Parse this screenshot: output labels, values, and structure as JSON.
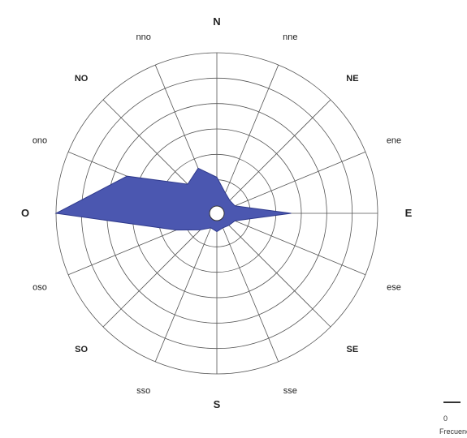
{
  "chart_data": {
    "type": "radar",
    "directions": [
      "N",
      "nne",
      "NE",
      "ene",
      "E",
      "ese",
      "SE",
      "sse",
      "S",
      "sso",
      "SO",
      "oso",
      "O",
      "ono",
      "NO",
      "nno"
    ],
    "rings": 6,
    "ring_max": 6,
    "series": [
      {
        "values": [
          1.1,
          0.55,
          0.4,
          0.45,
          2.6,
          0.45,
          0.35,
          0.3,
          0.4,
          0.3,
          0.6,
          1.4,
          6.0,
          3.5,
          1.3,
          1.6
        ]
      }
    ],
    "scale_labels": {
      "zero": "0",
      "caption": "Frecuencia"
    },
    "colors": {
      "fill": "#4b57b0",
      "stroke": "#2f3a8c",
      "grid": "#555555"
    }
  }
}
